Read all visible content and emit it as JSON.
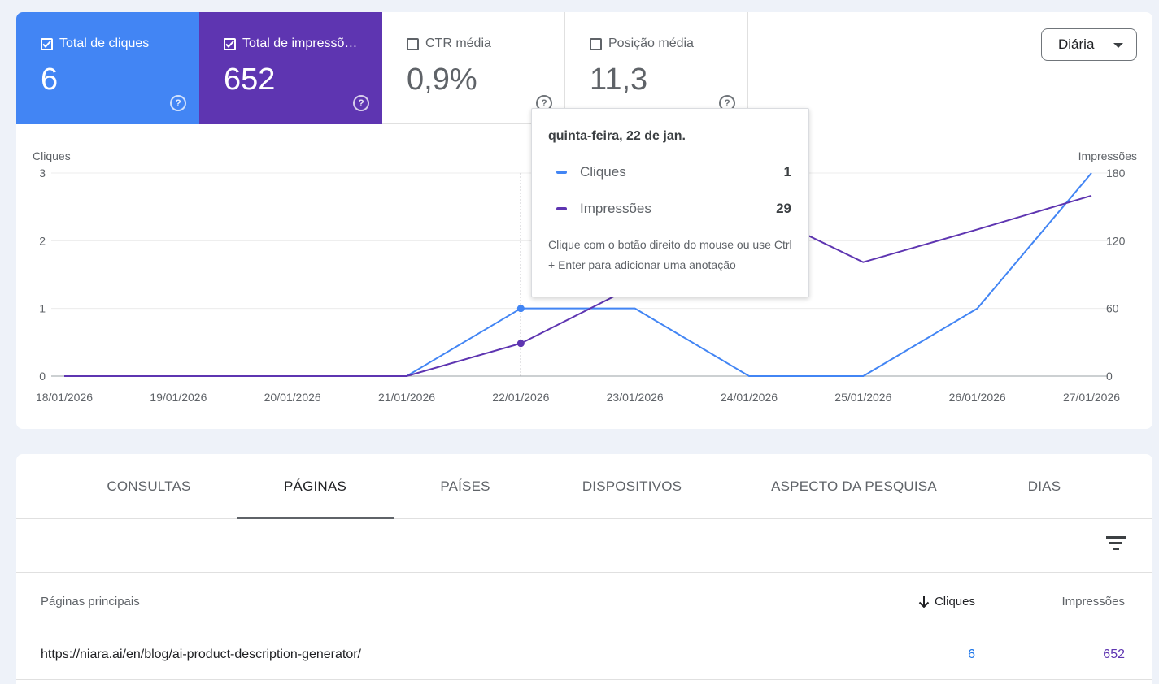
{
  "metrics": {
    "clicks": {
      "label": "Total de cliques",
      "value": "6",
      "checked": true,
      "color": "#4285f4"
    },
    "impressions": {
      "label": "Total de impressõ…",
      "value": "652",
      "checked": true,
      "color": "#5e35b1"
    },
    "ctr": {
      "label": "CTR média",
      "value": "0,9%",
      "checked": false
    },
    "position": {
      "label": "Posição média",
      "value": "11,3",
      "checked": false
    }
  },
  "period_select": {
    "value": "Diária"
  },
  "chart_data": {
    "type": "line",
    "x": [
      "18/01/2026",
      "19/01/2026",
      "20/01/2026",
      "21/01/2026",
      "22/01/2026",
      "23/01/2026",
      "24/01/2026",
      "25/01/2026",
      "26/01/2026",
      "27/01/2026"
    ],
    "series": [
      {
        "name": "Cliques",
        "axis": "left",
        "color": "#4285f4",
        "values": [
          0,
          0,
          0,
          0,
          1,
          1,
          0,
          0,
          1,
          3
        ]
      },
      {
        "name": "Impressões",
        "axis": "right",
        "color": "#5e35b1",
        "values": [
          0,
          0,
          0,
          0,
          29,
          80,
          150,
          101,
          130,
          160
        ]
      }
    ],
    "ylabel_left": "Cliques",
    "ylabel_right": "Impressões",
    "ylim_left": [
      0,
      3
    ],
    "ylim_right": [
      0,
      180
    ],
    "yticks_left": [
      "0",
      "1",
      "2",
      "3"
    ],
    "yticks_right": [
      "0",
      "60",
      "120",
      "180"
    ],
    "grid": true,
    "hover_index": 4
  },
  "tooltip": {
    "title": "quinta-feira, 22 de jan.",
    "rows": [
      {
        "name": "Cliques",
        "value": "1",
        "color": "#4285f4"
      },
      {
        "name": "Impressões",
        "value": "29",
        "color": "#5e35b1"
      }
    ],
    "hint": "Clique com o botão direito do mouse ou use Ctrl + Enter para adicionar uma anotação"
  },
  "tabs": [
    "CONSULTAS",
    "PÁGINAS",
    "PAÍSES",
    "DISPOSITIVOS",
    "ASPECTO DA PESQUISA",
    "DIAS"
  ],
  "active_tab": "PÁGINAS",
  "table": {
    "headers": {
      "page": "Páginas principais",
      "clicks": "Cliques",
      "impressions": "Impressões"
    },
    "rows": [
      {
        "page": "https://niara.ai/en/blog/ai-product-description-generator/",
        "clicks": "6",
        "impressions": "652"
      }
    ]
  }
}
